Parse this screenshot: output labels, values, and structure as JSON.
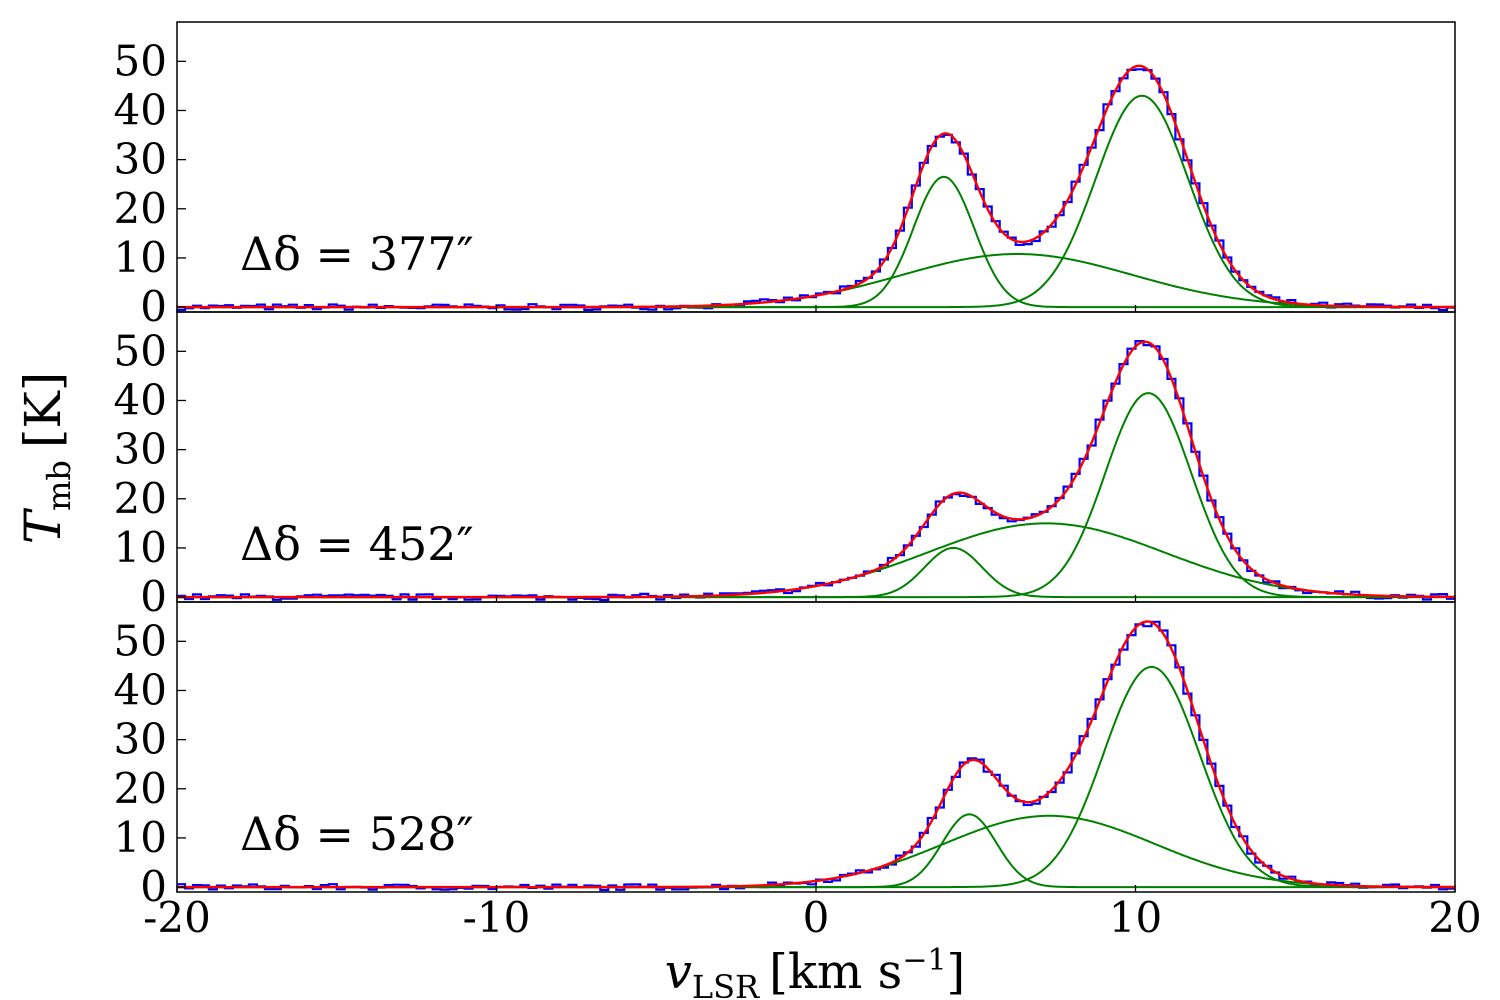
{
  "chart_data": {
    "type": "line",
    "xlabel": {
      "main": "v",
      "sub": "LSR",
      "unit": "[km s",
      "exp": "−1",
      "close": "]"
    },
    "ylabel": {
      "main": "T",
      "sub": "mb",
      "unit": "[K]"
    },
    "xlim": [
      -20,
      20
    ],
    "ylim": [
      -1,
      58
    ],
    "x_ticks": [
      -20,
      -10,
      0,
      10,
      20
    ],
    "x_tick_labels": [
      "-20",
      "-10",
      "0",
      "10",
      "20"
    ],
    "y_ticks": [
      0,
      10,
      20,
      30,
      40,
      50
    ],
    "y_tick_labels": [
      "0",
      "10",
      "20",
      "30",
      "40",
      "50"
    ],
    "grid": false,
    "colors": {
      "observed": "#0000ff",
      "fit_total": "#ff0000",
      "components": "#008000"
    },
    "panels": [
      {
        "label": "Δδ = 377″",
        "components": [
          {
            "amplitude": 26.5,
            "center": 4.0,
            "sigma": 0.95
          },
          {
            "amplitude": 10.8,
            "center": 6.3,
            "sigma": 3.6
          },
          {
            "amplitude": 43.0,
            "center": 10.2,
            "sigma": 1.45
          }
        ]
      },
      {
        "label": "Δδ = 452″",
        "components": [
          {
            "amplitude": 10.0,
            "center": 4.3,
            "sigma": 0.9
          },
          {
            "amplitude": 15.0,
            "center": 7.2,
            "sigma": 3.7
          },
          {
            "amplitude": 41.5,
            "center": 10.4,
            "sigma": 1.35
          }
        ]
      },
      {
        "label": "Δδ = 528″",
        "components": [
          {
            "amplitude": 14.8,
            "center": 4.8,
            "sigma": 0.85
          },
          {
            "amplitude": 14.5,
            "center": 7.3,
            "sigma": 3.3
          },
          {
            "amplitude": 44.8,
            "center": 10.5,
            "sigma": 1.5
          }
        ]
      }
    ]
  }
}
